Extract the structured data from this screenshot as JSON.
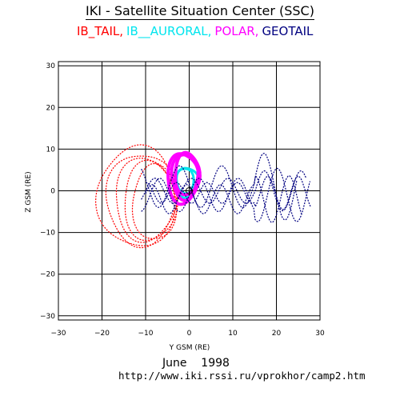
{
  "header": {
    "title": "IKI - Satellite Situation Center (SSC)"
  },
  "legend": [
    {
      "label": "IB_TAIL,",
      "color": "#ff0000"
    },
    {
      "label": "IB__AURORAL,",
      "color": "#00e5ee"
    },
    {
      "label": "POLAR,",
      "color": "#ff00ff"
    },
    {
      "label": "GEOTAIL",
      "color": "#000080"
    }
  ],
  "footer": {
    "date": "June    1998",
    "url": "http://www.iki.rssi.ru/vprokhor/camp2.htm"
  },
  "chart_data": {
    "type": "line",
    "xlabel": "Y GSM (RE)",
    "ylabel": "Z GSM (RE)",
    "xlim": [
      -30,
      30
    ],
    "ylim": [
      -31,
      31
    ],
    "xticks": [
      "-30",
      "-20",
      "-10",
      "0",
      "10",
      "20",
      "30"
    ],
    "yticks": [
      "-30",
      "-20",
      "-10",
      "0",
      "10",
      "20",
      "30"
    ],
    "grid": true,
    "series": [
      {
        "name": "IB_TAIL",
        "color": "#ff0000",
        "orbits": [
          {
            "cx": -11,
            "cz": -2,
            "ry": 8,
            "rz": 11
          },
          {
            "cx": -10,
            "cz": -2,
            "ry": 7,
            "rz": 10
          },
          {
            "cx": -9,
            "cz": -2.5,
            "ry": 6,
            "rz": 9.5
          },
          {
            "cx": -8,
            "cz": -3,
            "ry": 5,
            "rz": 9
          },
          {
            "cx": -12,
            "cz": -1.5,
            "ry": 9,
            "rz": 12
          }
        ]
      },
      {
        "name": "IB__AURORAL",
        "color": "#00e5ee",
        "orbits": [
          {
            "cx": -1,
            "cz": 2,
            "ry": 2,
            "rz": 3.5
          },
          {
            "cx": -0.5,
            "cz": 2.5,
            "ry": 2.5,
            "rz": 3
          }
        ]
      },
      {
        "name": "POLAR",
        "color": "#ff00ff",
        "orbits": [
          {
            "cx": -1,
            "cz": 3.5,
            "ry": 3,
            "rz": 5.5
          },
          {
            "cx": -1.5,
            "cz": 3,
            "ry": 3.5,
            "rz": 6
          },
          {
            "cx": -0.5,
            "cz": 4,
            "ry": 2.8,
            "rz": 5
          }
        ]
      },
      {
        "name": "GEOTAIL",
        "color": "#000080",
        "orbits": [
          {
            "y0": -11,
            "y1": 28,
            "zc": -1,
            "amp": 4,
            "k": 0.7,
            "ph": 0
          },
          {
            "y0": -11,
            "y1": 27,
            "zc": 0,
            "amp": 3,
            "k": 0.75,
            "ph": 1.2
          },
          {
            "y0": -10,
            "y1": 26,
            "zc": -2,
            "amp": 3.5,
            "k": 0.8,
            "ph": 2.1
          },
          {
            "y0": -11,
            "y1": 25,
            "zc": 1,
            "amp": 5,
            "k": 0.65,
            "ph": 3.0
          },
          {
            "y0": -10,
            "y1": 28,
            "zc": -0.5,
            "amp": 2.5,
            "k": 0.9,
            "ph": 4.2
          }
        ]
      }
    ]
  }
}
